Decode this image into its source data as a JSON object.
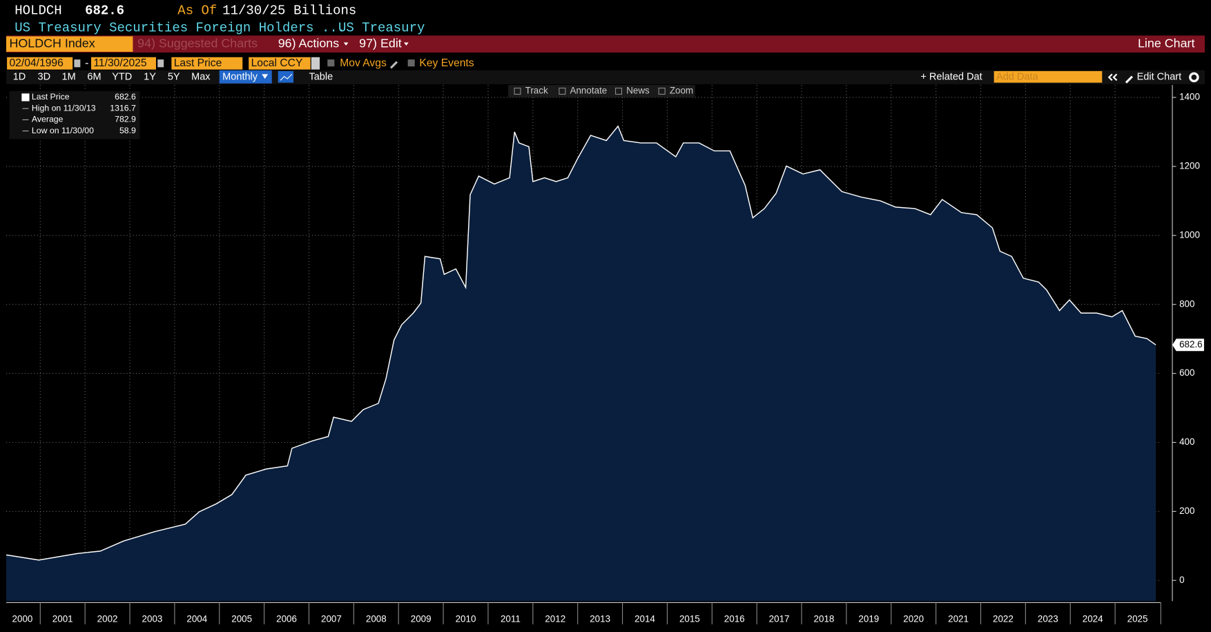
{
  "header": {
    "ticker": "HOLDCH",
    "last_value": 682.6,
    "as_of_label": "As Of",
    "as_of_date": "11/30/25",
    "units": "Billions",
    "description": "US Treasury Securities Foreign Holders ...",
    "source": "US Treasury"
  },
  "toolbar": {
    "security": "HOLDCH Index",
    "suggested": "94) Suggested Charts",
    "actions": "96) Actions",
    "edit": "97) Edit",
    "chart_type": "Line Chart"
  },
  "controls": {
    "start_date": "02/04/1996",
    "separator": "-",
    "end_date": "11/30/2025",
    "field": "Last Price",
    "currency": "Local CCY",
    "mov_avgs": "Mov Avgs",
    "key_events": "Key Events",
    "ranges": [
      "1D",
      "3D",
      "1M",
      "6M",
      "YTD",
      "1Y",
      "5Y",
      "Max"
    ],
    "frequency": "Monthly",
    "table": "Table",
    "related": "+ Related Dat",
    "add_data": "Add Data",
    "edit_chart": "Edit Chart"
  },
  "chart_tools": [
    "Track",
    "Annotate",
    "News",
    "Zoom"
  ],
  "chart_data": {
    "type": "area",
    "x": [
      2000.24,
      2000.97,
      2001.83,
      2002.34,
      2002.86,
      2003.55,
      2004.24,
      2004.55,
      2004.93,
      2005.28,
      2005.59,
      2006.05,
      2006.52,
      2006.62,
      2007.09,
      2007.43,
      2007.55,
      2007.95,
      2008.21,
      2008.55,
      2008.72,
      2008.9,
      2009.07,
      2009.33,
      2009.5,
      2009.59,
      2009.93,
      2010.02,
      2010.28,
      2010.5,
      2010.6,
      2010.79,
      2011.14,
      2011.48,
      2011.59,
      2011.69,
      2011.91,
      2012,
      2012.26,
      2012.52,
      2012.78,
      2013,
      2013.29,
      2013.64,
      2013.9,
      2014.03,
      2014.41,
      2014.76,
      2015.19,
      2015.36,
      2015.71,
      2016.05,
      2016.4,
      2016.74,
      2016.91,
      2017.17,
      2017.43,
      2017.66,
      2018.03,
      2018.41,
      2018.9,
      2019.33,
      2019.76,
      2020.1,
      2020.53,
      2020.88,
      2021.14,
      2021.57,
      2021.91,
      2022.26,
      2022.43,
      2022.69,
      2022.95,
      2023.29,
      2023.47,
      2023.76,
      2023.98,
      2024.24,
      2024.59,
      2024.93,
      2025.16,
      2025.45,
      2025.71,
      2025.91
    ],
    "values": [
      74,
      58.9,
      78,
      85,
      114,
      141,
      163,
      199,
      222,
      249,
      305,
      323,
      332,
      383,
      405,
      417,
      473,
      461,
      495,
      513,
      585,
      697,
      741,
      775,
      804,
      939,
      932,
      887,
      903,
      849,
      1118,
      1172,
      1149,
      1167,
      1300,
      1268,
      1257,
      1156,
      1167,
      1156,
      1167,
      1223,
      1290,
      1275,
      1316.7,
      1275,
      1268,
      1268,
      1228,
      1268,
      1268,
      1245,
      1245,
      1145,
      1051,
      1078,
      1122,
      1201,
      1178,
      1190,
      1127,
      1111,
      1100,
      1082,
      1078,
      1060,
      1104,
      1066,
      1060,
      1022,
      954,
      939,
      876,
      865,
      842,
      782,
      813,
      775,
      775,
      764,
      782,
      708,
      701,
      682.6
    ],
    "color": "#0a1f3d",
    "line_color": "#ffffff",
    "xlim": [
      2000.24,
      2026.02
    ],
    "xticks": [
      2000,
      2001,
      2002,
      2003,
      2004,
      2005,
      2006,
      2007,
      2008,
      2009,
      2010,
      2011,
      2012,
      2013,
      2014,
      2015,
      2016,
      2017,
      2018,
      2019,
      2020,
      2021,
      2022,
      2023,
      2024,
      2025
    ],
    "ylim": [
      -60,
      1436
    ],
    "yticks": [
      0,
      200,
      400,
      600,
      800,
      1000,
      1200,
      1400
    ],
    "grid": true,
    "legend": [
      {
        "label": "Last Price",
        "value": 682.6
      },
      {
        "label": "High on 11/30/13",
        "value": 1316.7
      },
      {
        "label": "Average",
        "value": 782.9
      },
      {
        "label": "Low on 11/30/00",
        "value": 58.9
      }
    ]
  }
}
